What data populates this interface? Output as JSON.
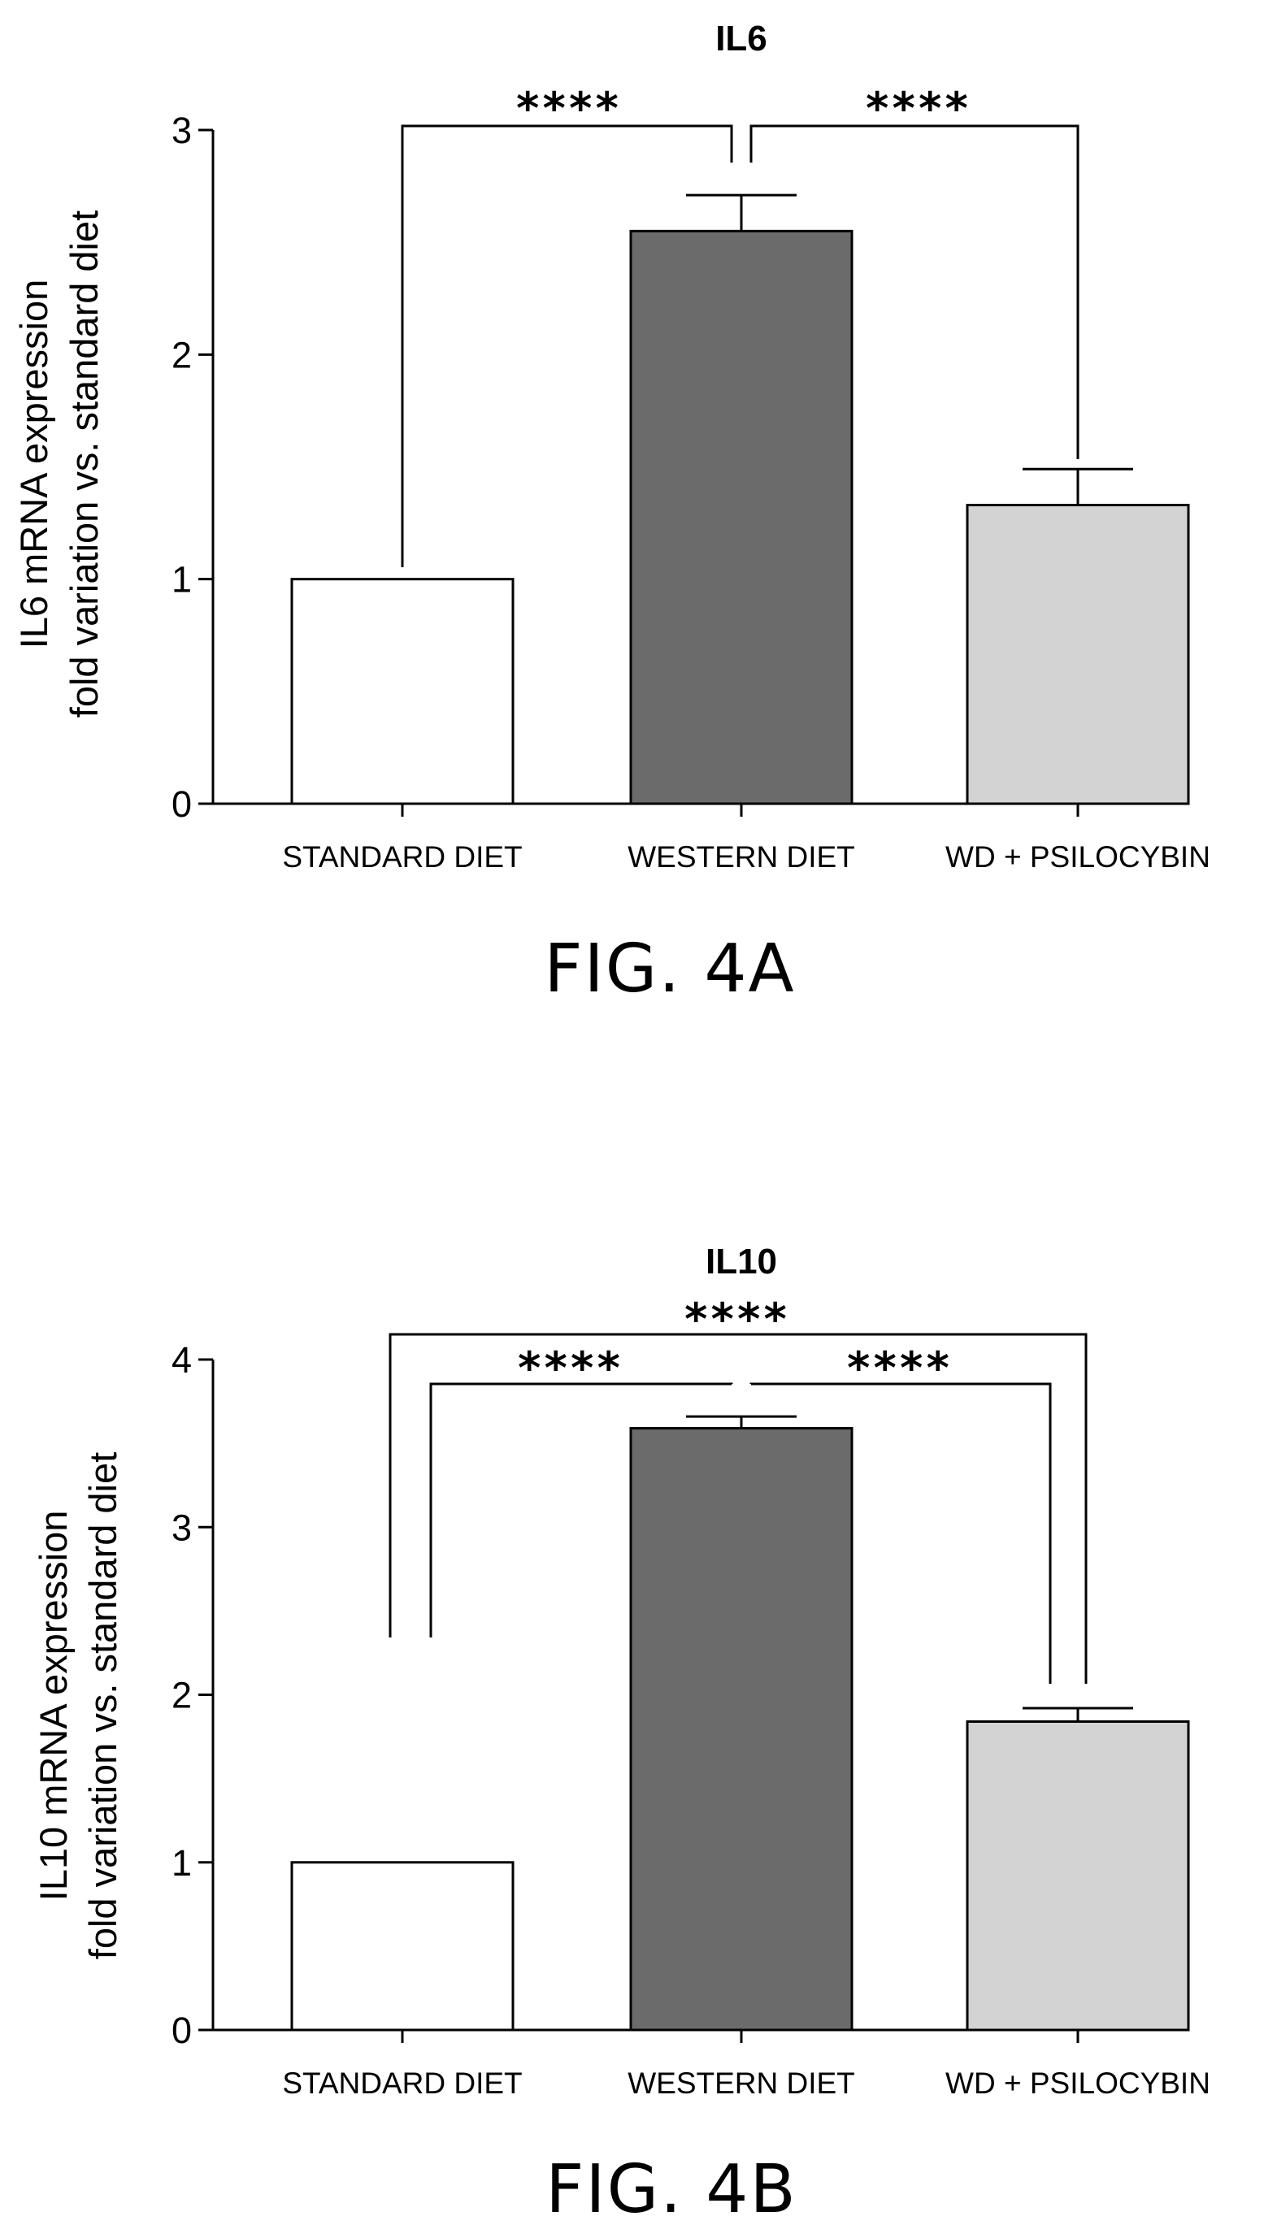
{
  "figures": [
    {
      "label": "FIG. 4A",
      "chart_data": {
        "type": "bar",
        "title": "IL6",
        "ylabel_line1": "IL6 mRNA  expression",
        "ylabel_line2": "fold variation vs. standard diet",
        "xlabel": "",
        "categories": [
          "STANDARD DIET",
          "WESTERN DIET",
          "WD + PSILOCYBIN"
        ],
        "values": [
          1.0,
          2.55,
          1.33
        ],
        "errors": [
          0.0,
          0.16,
          0.16
        ],
        "ylim": [
          0,
          3
        ],
        "yticks": [
          "0",
          "1",
          "2",
          "3"
        ],
        "fills": [
          "#ffffff",
          "#6b6b6b",
          "#d3d3d3"
        ],
        "significance": [
          {
            "from": 0,
            "to": 1,
            "text": "****"
          },
          {
            "from": 1,
            "to": 2,
            "text": "****"
          }
        ],
        "grid": false,
        "legend": "none"
      }
    },
    {
      "label": "FIG. 4B",
      "chart_data": {
        "type": "bar",
        "title": "IL10",
        "ylabel_line1": "IL10 mRNA  expression",
        "ylabel_line2": "fold variation vs. standard diet",
        "xlabel": "",
        "categories": [
          "STANDARD DIET",
          "WESTERN DIET",
          "WD + PSILOCYBIN"
        ],
        "values": [
          1.0,
          3.59,
          1.84
        ],
        "errors": [
          0.0,
          0.07,
          0.08
        ],
        "ylim": [
          0,
          4
        ],
        "yticks": [
          "0",
          "1",
          "2",
          "3",
          "4"
        ],
        "fills": [
          "#ffffff",
          "#6b6b6b",
          "#d3d3d3"
        ],
        "significance": [
          {
            "from": 0,
            "to": 2,
            "text": "****"
          },
          {
            "from": 0,
            "to": 1,
            "text": "****"
          },
          {
            "from": 1,
            "to": 2,
            "text": "****"
          }
        ],
        "grid": false,
        "legend": "none"
      }
    }
  ]
}
